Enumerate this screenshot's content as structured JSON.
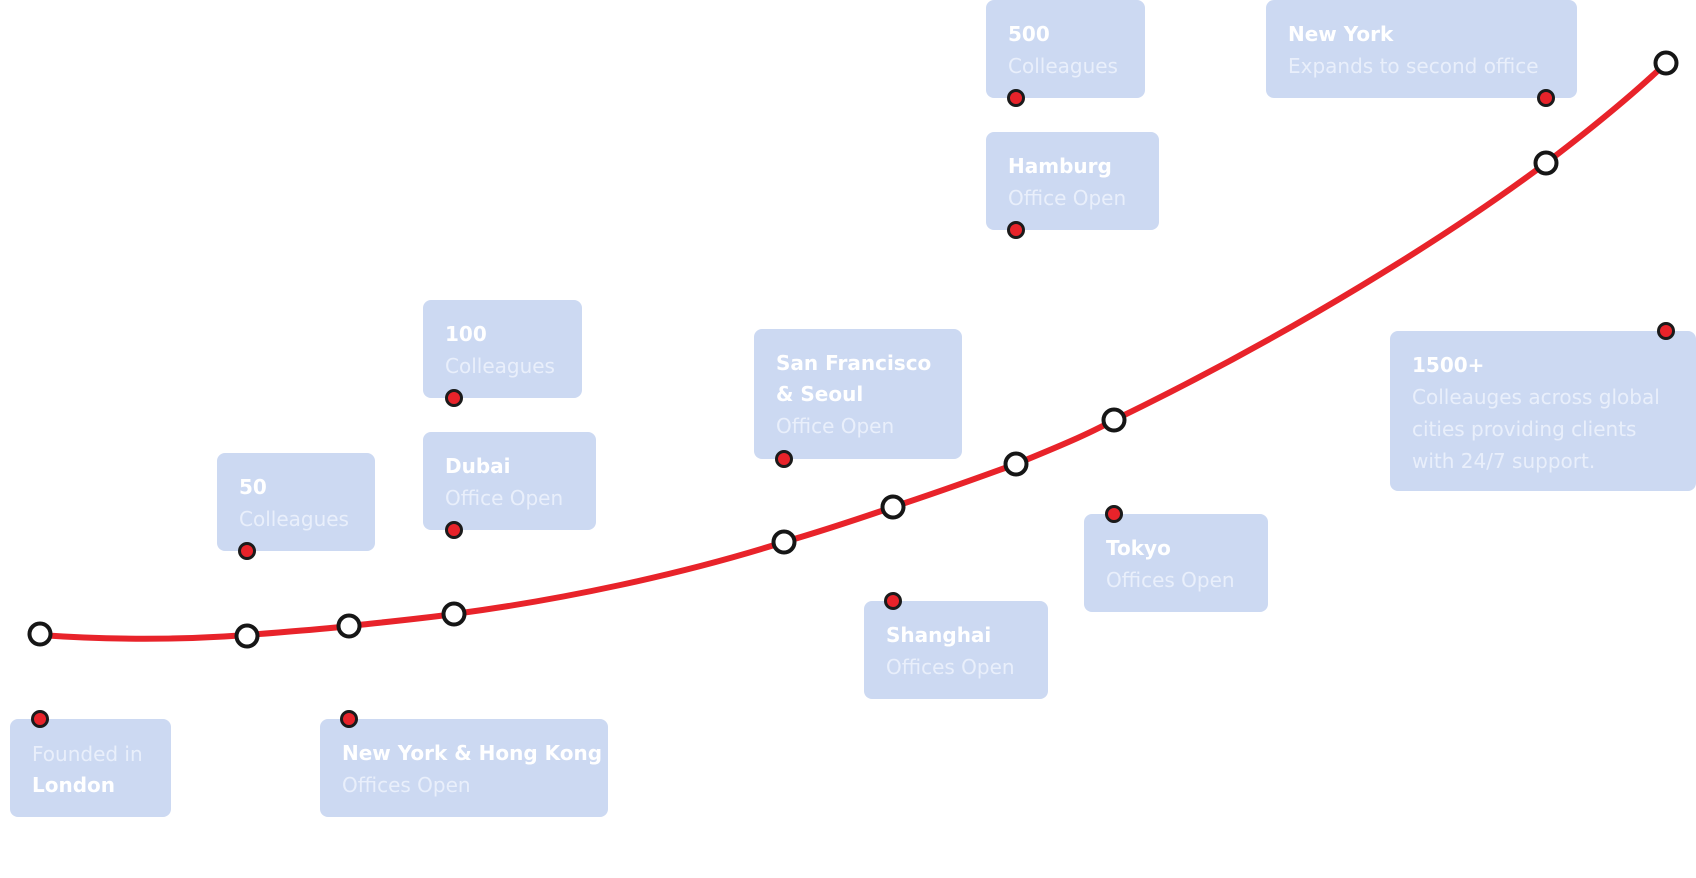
{
  "timeline": {
    "line_color": "#e8232a",
    "card_color": "#ccd9f2",
    "milestones": [
      {
        "id": "london",
        "lines": [
          {
            "text": "Founded in",
            "style": "soft"
          },
          {
            "text": "London",
            "style": "strong"
          }
        ]
      },
      {
        "id": "50-colleagues",
        "lines": [
          {
            "text": "50",
            "style": "strong"
          },
          {
            "text": "Colleagues",
            "style": "soft"
          }
        ]
      },
      {
        "id": "new-york-hong-kong",
        "lines": [
          {
            "text": "New York & Hong Kong",
            "style": "strong"
          },
          {
            "text": "Offices Open",
            "style": "soft"
          }
        ]
      },
      {
        "id": "100-colleagues",
        "lines": [
          {
            "text": "100",
            "style": "strong"
          },
          {
            "text": "Colleagues",
            "style": "soft"
          }
        ]
      },
      {
        "id": "dubai",
        "lines": [
          {
            "text": "Dubai",
            "style": "strong"
          },
          {
            "text": "Office Open",
            "style": "soft"
          }
        ]
      },
      {
        "id": "san-francisco-seoul",
        "lines": [
          {
            "text": "San Francisco",
            "style": "strong"
          },
          {
            "text": "& Seoul",
            "style": "strong"
          },
          {
            "text": "Office Open",
            "style": "soft"
          }
        ]
      },
      {
        "id": "shanghai",
        "lines": [
          {
            "text": "Shanghai",
            "style": "strong"
          },
          {
            "text": "Offices Open",
            "style": "soft"
          }
        ]
      },
      {
        "id": "500-colleagues",
        "lines": [
          {
            "text": "500",
            "style": "strong"
          },
          {
            "text": "Colleagues",
            "style": "soft"
          }
        ]
      },
      {
        "id": "hamburg",
        "lines": [
          {
            "text": "Hamburg",
            "style": "strong"
          },
          {
            "text": "Office Open",
            "style": "soft"
          }
        ]
      },
      {
        "id": "tokyo",
        "lines": [
          {
            "text": "Tokyo",
            "style": "strong"
          },
          {
            "text": "Offices Open",
            "style": "soft"
          }
        ]
      },
      {
        "id": "new-york",
        "lines": [
          {
            "text": "New York",
            "style": "strong"
          },
          {
            "text": "Expands to second office",
            "style": "soft"
          }
        ]
      },
      {
        "id": "1500-colleagues",
        "lines": [
          {
            "text": "1500+",
            "style": "strong"
          },
          {
            "text": "Colleauges across global",
            "style": "soft"
          },
          {
            "text": "cities providing clients",
            "style": "soft"
          },
          {
            "text": "with 24/7 support.",
            "style": "soft"
          }
        ]
      }
    ]
  }
}
